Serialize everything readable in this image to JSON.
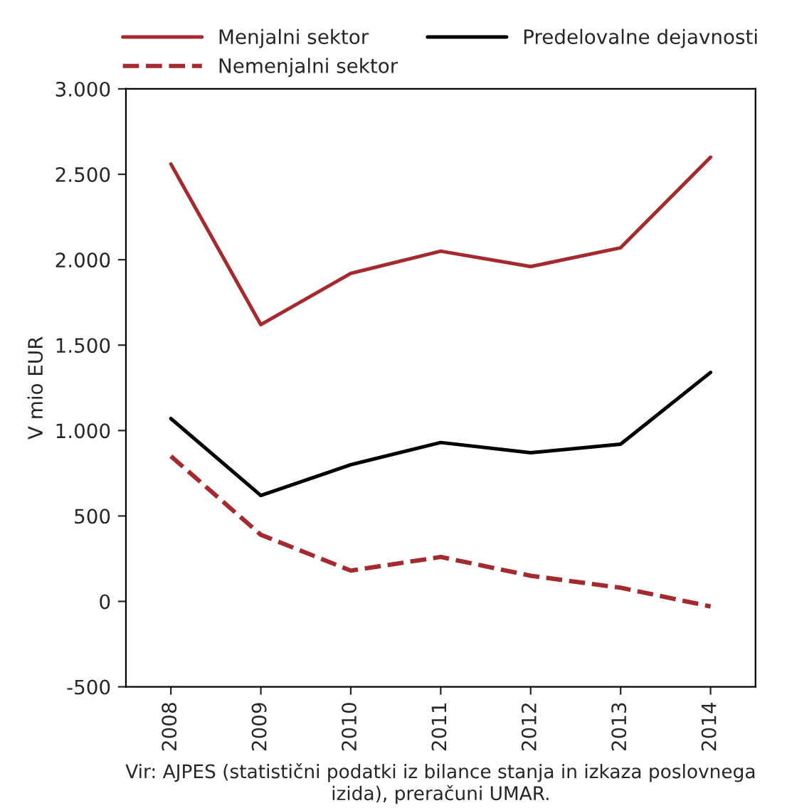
{
  "chart_data": {
    "type": "line",
    "categories": [
      "2008",
      "2009",
      "2010",
      "2011",
      "2012",
      "2013",
      "2014"
    ],
    "series": [
      {
        "name": "Menjalni sektor",
        "color": "#a52a2f",
        "line_style": "solid",
        "values": [
          2560,
          1620,
          1920,
          2050,
          1960,
          2070,
          2600
        ]
      },
      {
        "name": "Nemenjalni sektor",
        "color": "#a52a2f",
        "line_style": "dashed",
        "values": [
          850,
          390,
          180,
          260,
          150,
          80,
          -30
        ]
      },
      {
        "name": "Predelovalne dejavnosti",
        "color": "#000000",
        "line_style": "solid",
        "values": [
          1070,
          620,
          800,
          930,
          870,
          920,
          1340
        ]
      }
    ],
    "ylabel": "V mio EUR",
    "ylim": [
      -500,
      3000
    ],
    "yticks": [
      {
        "value": -500,
        "label": "-500"
      },
      0,
      500,
      {
        "value": 1000,
        "label": "1.000"
      },
      {
        "value": 1500,
        "label": "1.500"
      },
      {
        "value": 2000,
        "label": "2.000"
      },
      {
        "value": 2500,
        "label": "2.500"
      },
      {
        "value": 3000,
        "label": "3.000"
      }
    ],
    "grid": false,
    "legend": "top",
    "marker": "none",
    "annotations": [
      "Vir: AJPES (statistični podatki iz bilance stanja in izkaza poslovnega izida), preračuni UMAR."
    ]
  }
}
